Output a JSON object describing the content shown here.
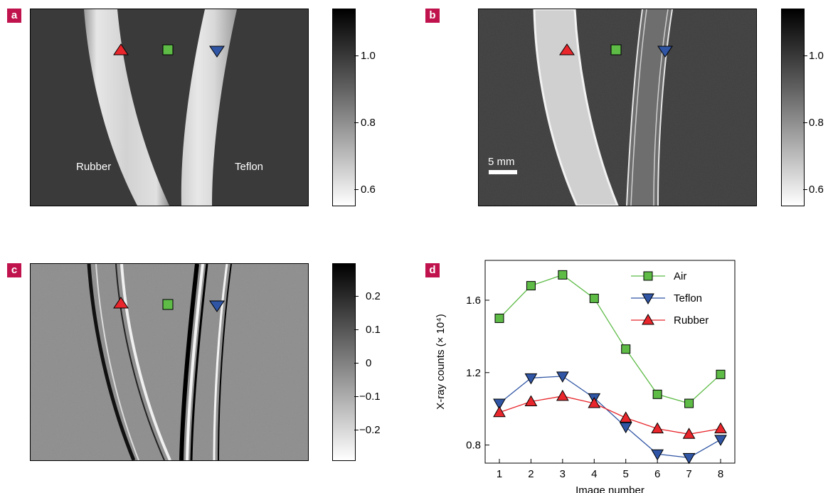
{
  "panels": {
    "a": {
      "label": "a",
      "text_left": "Rubber",
      "text_right": "Teflon"
    },
    "b": {
      "label": "b",
      "scale_bar": "5 mm"
    },
    "c": {
      "label": "c"
    },
    "d": {
      "label": "d"
    }
  },
  "colorbars": {
    "ab_ticks": [
      "1.0",
      "0.8",
      "0.6"
    ],
    "c_ticks": [
      "0.2",
      "0.1",
      "0",
      "−0.1",
      "−0.2"
    ]
  },
  "colors": {
    "air": "#5dbb46",
    "teflon": "#2f55a4",
    "rubber": "#e8262b"
  },
  "chart_data": {
    "type": "line",
    "xlabel": "Image number",
    "ylabel": "X-ray counts (× 10⁴)",
    "x": [
      1,
      2,
      3,
      4,
      5,
      6,
      7,
      8
    ],
    "xticks": [
      "1",
      "2",
      "3",
      "4",
      "5",
      "6",
      "7",
      "8"
    ],
    "yticks": [
      "0.8",
      "1.2",
      "1.6"
    ],
    "ylim": [
      0.7,
      1.82
    ],
    "legend_position": "top-right",
    "series": [
      {
        "name": "Air",
        "marker": "square",
        "color": "#5dbb46",
        "values": [
          1.5,
          1.68,
          1.74,
          1.61,
          1.33,
          1.08,
          1.03,
          1.19
        ]
      },
      {
        "name": "Teflon",
        "marker": "triangle-down",
        "color": "#2f55a4",
        "values": [
          1.03,
          1.17,
          1.18,
          1.06,
          0.9,
          0.75,
          0.73,
          0.83
        ]
      },
      {
        "name": "Rubber",
        "marker": "triangle-up",
        "color": "#e8262b",
        "values": [
          0.98,
          1.04,
          1.07,
          1.03,
          0.95,
          0.89,
          0.86,
          0.89
        ]
      }
    ]
  }
}
